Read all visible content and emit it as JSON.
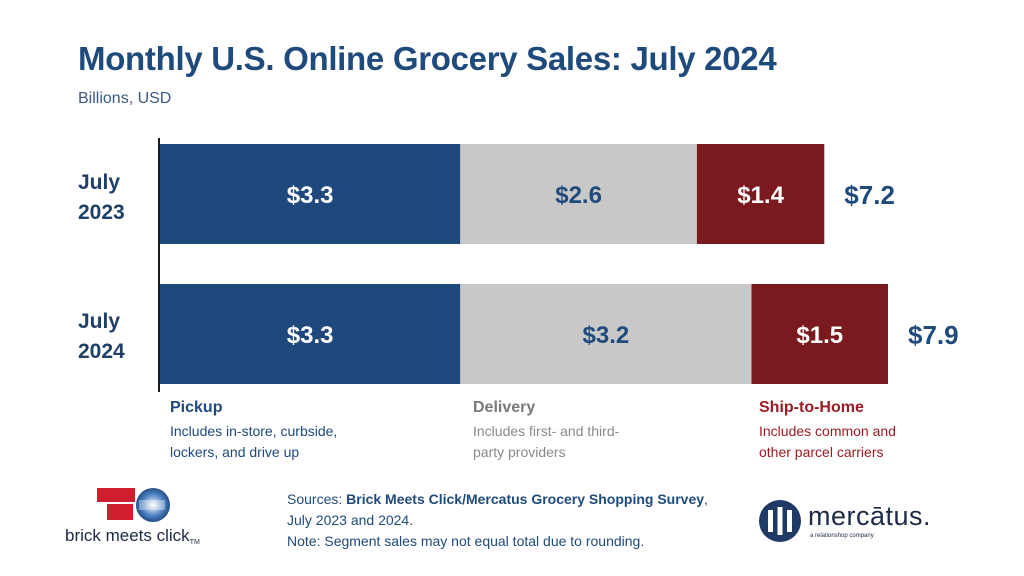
{
  "header": {
    "title": "Monthly U.S. Online Grocery Sales: July 2024",
    "subtitle": "Billions, USD"
  },
  "colors": {
    "pickup": "#1f497d",
    "delivery": "#c8c8c8",
    "ship": "#7a1a1f",
    "text_dark_blue": "#1f4a7c"
  },
  "chart_data": {
    "type": "bar",
    "orientation": "horizontal",
    "stacked": true,
    "categories": [
      "July 2023",
      "July 2024"
    ],
    "category_lines": [
      [
        "July",
        "2023"
      ],
      [
        "July",
        "2024"
      ]
    ],
    "series": [
      {
        "name": "Pickup",
        "values": [
          3.3,
          3.3
        ],
        "labels": [
          "$3.3",
          "$3.3"
        ]
      },
      {
        "name": "Delivery",
        "values": [
          2.6,
          3.2
        ],
        "labels": [
          "$2.6",
          "$3.2"
        ]
      },
      {
        "name": "Ship-to-Home",
        "values": [
          1.4,
          1.5
        ],
        "labels": [
          "$1.4",
          "$1.5"
        ]
      }
    ],
    "totals": [
      7.2,
      7.9
    ],
    "total_labels": [
      "$7.2",
      "$7.9"
    ],
    "title": "Monthly U.S. Online Grocery Sales: July 2024",
    "xlabel": "",
    "ylabel": "",
    "grid": false,
    "legend_position": "bottom"
  },
  "legend": [
    {
      "name": "Pickup",
      "desc": [
        "Includes in-store, curbside,",
        "lockers, and drive up"
      ]
    },
    {
      "name": "Delivery",
      "desc": [
        "Includes first- and third-",
        "party providers"
      ]
    },
    {
      "name": "Ship-to-Home",
      "desc": [
        "Includes common and",
        "other parcel carriers"
      ]
    }
  ],
  "footer": {
    "brand_left": "brick meets click",
    "brand_left_tm": "TM",
    "sources_prefix": "Sources: ",
    "sources_bold": "Brick Meets Click/Mercatus Grocery Shopping Survey",
    "sources_suffix": ",",
    "sources_line2": "July 2023 and 2024.",
    "note": "Note: Segment sales may not equal total due to rounding.",
    "brand_right": "mercātus.",
    "brand_right_sub": "a relationshop company"
  }
}
